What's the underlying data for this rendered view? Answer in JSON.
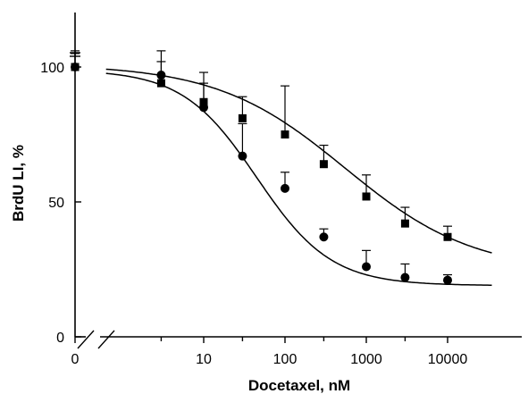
{
  "chart_data": {
    "type": "scatter",
    "title": "",
    "xlabel": "Docetaxel, nM",
    "ylabel": "BrdU LI, %",
    "x_scale": "log",
    "x_tick_labels": [
      "0",
      "10",
      "100",
      "1000",
      "10000"
    ],
    "x_tick_values": [
      0,
      10,
      100,
      1000,
      10000
    ],
    "ylim": [
      0,
      120
    ],
    "y_tick_labels": [
      "0",
      "50",
      "100"
    ],
    "y_tick_values": [
      0,
      50,
      100
    ],
    "grid": false,
    "legend": "none",
    "axis_breaks": [
      "x",
      "y"
    ],
    "series": [
      {
        "marker": "circle",
        "color": "#000000",
        "points": [
          {
            "x": 0,
            "y": 100,
            "err": 5
          },
          {
            "x": 3,
            "y": 97,
            "err": 9
          },
          {
            "x": 10,
            "y": 85,
            "err": 9
          },
          {
            "x": 30,
            "y": 67,
            "err": 12
          },
          {
            "x": 100,
            "y": 55,
            "err": 6
          },
          {
            "x": 300,
            "y": 37,
            "err": 3
          },
          {
            "x": 1000,
            "y": 26,
            "err": 6
          },
          {
            "x": 3000,
            "y": 22,
            "err": 5
          },
          {
            "x": 10000,
            "y": 21,
            "err": 2
          }
        ],
        "fit": {
          "top": 99,
          "bottom": 19,
          "ec50": 45,
          "hill": 0.95,
          "x_range": [
            0.2,
            35000
          ]
        }
      },
      {
        "marker": "square",
        "color": "#000000",
        "points": [
          {
            "x": 0,
            "y": 100,
            "err": 6
          },
          {
            "x": 3,
            "y": 94,
            "err": 8
          },
          {
            "x": 10,
            "y": 87,
            "err": 11
          },
          {
            "x": 30,
            "y": 81,
            "err": 8
          },
          {
            "x": 100,
            "y": 75,
            "err": 18
          },
          {
            "x": 300,
            "y": 64,
            "err": 7
          },
          {
            "x": 1000,
            "y": 52,
            "err": 8
          },
          {
            "x": 3000,
            "y": 42,
            "err": 6
          },
          {
            "x": 10000,
            "y": 37,
            "err": 4
          }
        ],
        "fit": {
          "top": 101,
          "bottom": 24,
          "ec50": 550,
          "hill": 0.55,
          "x_range": [
            0.2,
            35000
          ]
        }
      }
    ]
  }
}
